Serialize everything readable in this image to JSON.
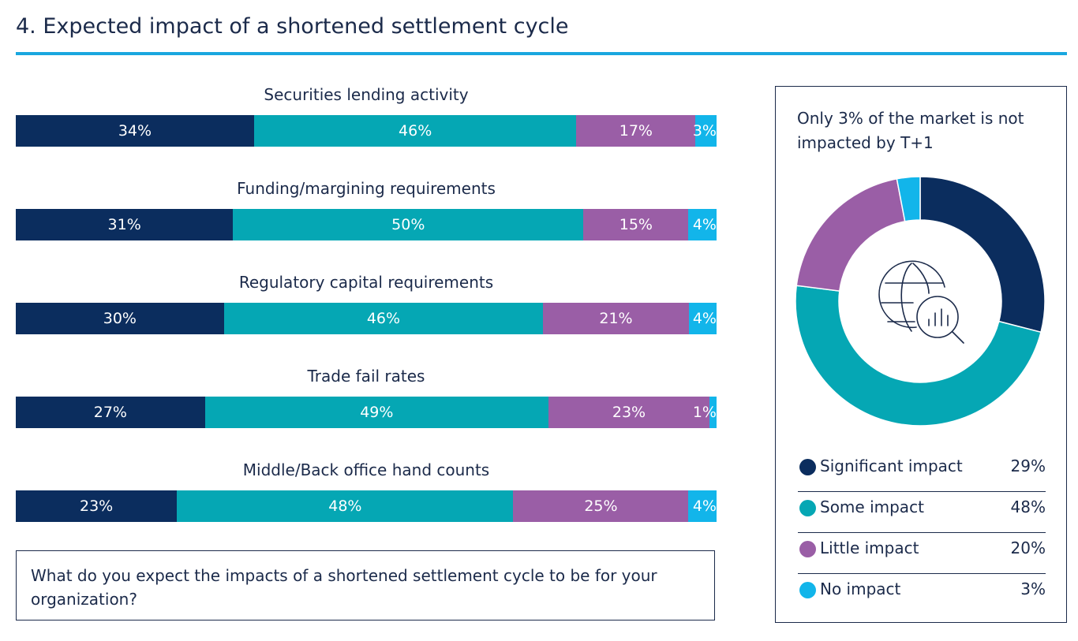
{
  "title": "4. Expected impact of a shortened settlement cycle",
  "question": "What do you expect the impacts of a shortened settlement cycle to be for your organization?",
  "colors": {
    "Significant impact": "#0b2d5e",
    "Some impact": "#05a7b4",
    "Little impact": "#9a5ea6",
    "No impact": "#12b5ea",
    "text": "#1b2a4a",
    "rule": "#1aa7df"
  },
  "chart_data": [
    {
      "type": "bar",
      "orientation": "horizontal",
      "stacked": true,
      "normalized": true,
      "categories": [
        "Securities lending activity",
        "Funding/margining requirements",
        "Regulatory capital requirements",
        "Trade fail rates",
        "Middle/Back office hand counts"
      ],
      "series": [
        {
          "name": "Significant impact",
          "values": [
            34,
            31,
            30,
            27,
            23
          ],
          "labels": [
            "34%",
            "31%",
            "30%",
            "27%",
            "23%"
          ]
        },
        {
          "name": "Some impact",
          "values": [
            46,
            50,
            46,
            49,
            48
          ],
          "labels": [
            "46%",
            "50%",
            "46%",
            "49%",
            "48%"
          ]
        },
        {
          "name": "Little impact",
          "values": [
            17,
            15,
            21,
            23,
            25
          ],
          "labels": [
            "17%",
            "15%",
            "21%",
            "23%",
            "25%"
          ]
        },
        {
          "name": "No impact",
          "values": [
            3,
            4,
            4,
            1,
            4
          ],
          "labels": [
            "3%",
            "4%",
            "4%",
            "1%",
            "4%"
          ]
        }
      ]
    },
    {
      "type": "pie",
      "donut": true,
      "title": "Only 3% of the market is not impacted by T+1",
      "center_icon": "globe-chart-magnifier-icon",
      "labels": [
        "Significant impact",
        "Some impact",
        "Little impact",
        "No impact"
      ],
      "values": [
        29,
        48,
        20,
        3
      ],
      "value_labels": [
        "29%",
        "48%",
        "20%",
        "3%"
      ],
      "legend": "bottom"
    }
  ]
}
